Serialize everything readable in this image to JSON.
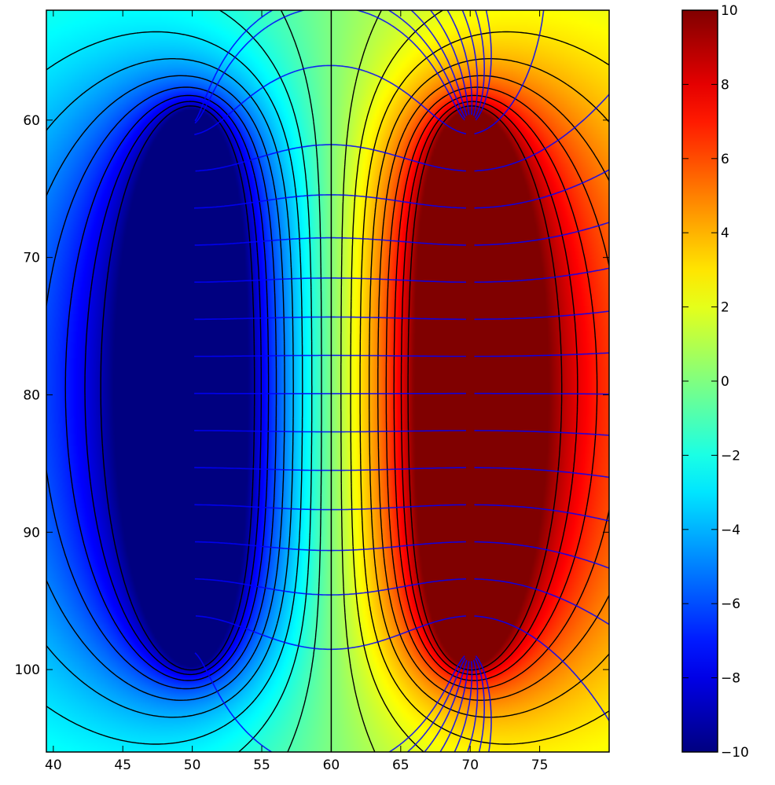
{
  "chart_data": [
    {
      "type": "heatmap",
      "title": "",
      "xlabel": "",
      "ylabel": "",
      "xlim": [
        39.5,
        80
      ],
      "ylim": [
        106,
        52
      ],
      "x_ticks": [
        40,
        45,
        50,
        55,
        60,
        65,
        70,
        75
      ],
      "x_tick_labels": [
        "40",
        "45",
        "50",
        "55",
        "60",
        "65",
        "70",
        "75"
      ],
      "y_ticks": [
        60,
        70,
        80,
        90,
        100
      ],
      "y_tick_labels": [
        "60",
        "70",
        "80",
        "90",
        "100"
      ],
      "grid": false,
      "colormap": "jet",
      "colorbar": {
        "range": [
          -10,
          10
        ],
        "ticks": [
          -10,
          -8,
          -6,
          -4,
          -2,
          0,
          2,
          4,
          6,
          8,
          10
        ],
        "tick_labels": [
          "−10",
          "−8",
          "−6",
          "−4",
          "−2",
          "0",
          "2",
          "4",
          "6",
          "8",
          "10"
        ]
      },
      "sources": [
        {
          "name": "negative line charge",
          "x": 50,
          "y_start": 60,
          "y_end": 99,
          "peak_value": -10
        },
        {
          "name": "positive line charge",
          "x": 70,
          "y_start": 60,
          "y_end": 99,
          "peak_value": 10
        }
      ],
      "symmetry_line_x": 60,
      "contour_levels_negative": [
        -1,
        -2,
        -3,
        -4,
        -5,
        -6,
        -7,
        -8,
        -9
      ],
      "contour_levels_positive": [
        1,
        2,
        3,
        4,
        5,
        6,
        7,
        8,
        9
      ],
      "contour_style_negative": "dashed",
      "contour_style_positive": "solid",
      "field_line_color": "#0000ff",
      "contour_color": "#000000"
    },
    {
      "type": "colorbar",
      "range": [
        -10,
        10
      ],
      "colormap": "jet"
    }
  ]
}
